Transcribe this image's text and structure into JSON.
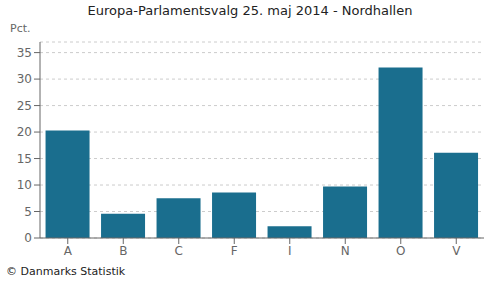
{
  "chart_data": {
    "type": "bar",
    "title": "Europa-Parlamentsvalg 25. maj 2014 - Nordhallen",
    "ylabel": "Pct.",
    "categories": [
      "A",
      "B",
      "C",
      "F",
      "I",
      "N",
      "O",
      "V"
    ],
    "values": [
      20.3,
      4.6,
      7.5,
      8.6,
      2.2,
      9.7,
      32.2,
      16.1
    ],
    "color": "#1a6e8e",
    "ylim": [
      0,
      37
    ],
    "yticks": [
      0,
      5,
      10,
      15,
      20,
      25,
      30,
      35
    ],
    "grid": true,
    "annotations": [
      "© Danmarks Statistik"
    ]
  }
}
